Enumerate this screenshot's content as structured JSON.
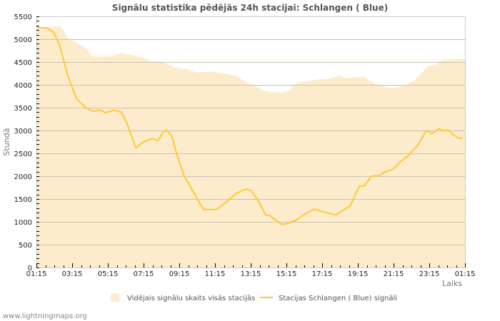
{
  "title": "Signālu statistika pēdējās 24h stacijai: Schlangen ( Blue)",
  "footer": "www.lightningmaps.org",
  "colors": {
    "area_fill": "#fdeccb",
    "line": "#fcc936",
    "grid": "#c8c0b0",
    "axis": "#cccccc"
  },
  "chart_data": {
    "type": "area+line",
    "title": "Signālu statistika pēdējās 24h stacijai: Schlangen ( Blue)",
    "xlabel": "Laiks",
    "ylabel": "Stundā",
    "ylim": [
      0,
      5500
    ],
    "yticks": [
      0,
      500,
      1000,
      1500,
      2000,
      2500,
      3000,
      3500,
      4000,
      4500,
      5000,
      5500
    ],
    "xticks": [
      "01:15",
      "03:15",
      "05:15",
      "07:15",
      "09:15",
      "11:15",
      "13:15",
      "15:15",
      "17:15",
      "19:15",
      "21:15",
      "23:15",
      "01:15"
    ],
    "xlim_hours": [
      0,
      24
    ],
    "grid": true,
    "legend_position": "bottom",
    "series": [
      {
        "name": "Vidējais signālu skaits visās stacijās",
        "kind": "area",
        "x_hours": [
          0,
          0.96,
          1.36,
          1.76,
          2.36,
          2.76,
          3.16,
          4.16,
          4.76,
          5.36,
          5.96,
          6.36,
          6.96,
          7.56,
          7.96,
          8.56,
          8.96,
          9.76,
          10.56,
          11.16,
          11.76,
          12.36,
          12.76,
          13.36,
          13.76,
          14.16,
          14.36,
          14.76,
          15.16,
          15.76,
          16.36,
          16.96,
          17.24,
          17.76,
          18.36,
          18.76,
          19.16,
          19.56,
          19.96,
          20.36,
          20.76,
          21.16,
          21.56,
          21.96,
          22.36,
          22.76,
          23.16,
          23.48,
          23.88
        ],
        "values": [
          5260,
          5270,
          5290,
          5020,
          4900,
          4800,
          4620,
          4620,
          4700,
          4650,
          4600,
          4520,
          4520,
          4420,
          4360,
          4340,
          4270,
          4290,
          4250,
          4200,
          4060,
          3950,
          3870,
          3840,
          3830,
          3870,
          3990,
          4060,
          4080,
          4120,
          4130,
          4200,
          4150,
          4170,
          4170,
          4060,
          4010,
          3960,
          3920,
          3960,
          4010,
          4100,
          4260,
          4420,
          4430,
          4550,
          4560,
          4570,
          4570
        ]
      },
      {
        "name": "Stacijas Schlangen ( Blue) signāli",
        "kind": "line",
        "x_hours": [
          0,
          0.56,
          0.96,
          1.28,
          1.76,
          2.24,
          2.76,
          3.16,
          3.56,
          3.88,
          4.36,
          4.76,
          5.08,
          5.56,
          5.96,
          6.36,
          6.56,
          6.8,
          7.08,
          7.28,
          7.56,
          7.88,
          8.28,
          8.68,
          9.16,
          9.36,
          9.96,
          10.16,
          10.68,
          11.16,
          11.56,
          11.76,
          12.04,
          12.36,
          12.84,
          13.08,
          13.36,
          13.76,
          14.16,
          14.56,
          14.96,
          15.56,
          15.96,
          16.36,
          16.76,
          17.36,
          17.56,
          18.08,
          18.36,
          18.76,
          19.16,
          19.56,
          19.96,
          20.36,
          20.76,
          21.36,
          21.84,
          22.16,
          22.56,
          22.84,
          23.08,
          23.36,
          23.6,
          23.88
        ],
        "values": [
          5260,
          5250,
          5150,
          4900,
          4200,
          3700,
          3500,
          3420,
          3450,
          3390,
          3450,
          3400,
          3150,
          2620,
          2740,
          2810,
          2820,
          2770,
          2960,
          3010,
          2900,
          2450,
          2000,
          1730,
          1400,
          1270,
          1270,
          1290,
          1450,
          1620,
          1690,
          1720,
          1680,
          1500,
          1150,
          1140,
          1040,
          940,
          980,
          1040,
          1150,
          1280,
          1230,
          1190,
          1150,
          1300,
          1340,
          1780,
          1790,
          2000,
          2010,
          2100,
          2150,
          2310,
          2430,
          2680,
          3000,
          2930,
          3040,
          2990,
          3010,
          2900,
          2840,
          2840
        ]
      }
    ]
  },
  "legend": {
    "area_label": "Vidējais signālu skaits visās stacijās",
    "line_label": "Stacijas Schlangen ( Blue) signāli"
  }
}
